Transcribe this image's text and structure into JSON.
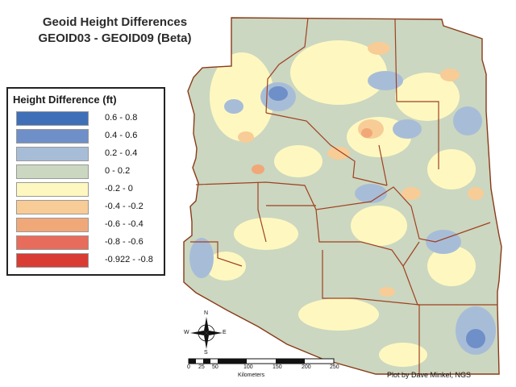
{
  "title": {
    "line1": "Geoid Height Differences",
    "line2": "GEOID03 - GEOID09 (Beta)"
  },
  "legend": {
    "title": "Height Difference (ft)",
    "items": [
      {
        "label": "0.6 - 0.8",
        "color": "#3f6fb7"
      },
      {
        "label": "0.4 - 0.6",
        "color": "#6f8fc8"
      },
      {
        "label": "0.2 - 0.4",
        "color": "#a7bdd7"
      },
      {
        "label": "0 - 0.2",
        "color": "#cbd7c0"
      },
      {
        "label": "-0.2 - 0",
        "color": "#fef8c0"
      },
      {
        "label": "-0.4 - -0.2",
        "color": "#f8cc96"
      },
      {
        "label": "-0.6 - -0.4",
        "color": "#f1a878"
      },
      {
        "label": "-0.8 - -0.6",
        "color": "#e86c5b"
      },
      {
        "label": "-0.922 - -0.8",
        "color": "#d83c33"
      }
    ]
  },
  "compass": {
    "n": "N",
    "s": "S",
    "e": "E",
    "w": "W"
  },
  "scale": {
    "ticks": [
      "0",
      "25",
      "50",
      "100",
      "150",
      "200",
      "250"
    ],
    "unit": "Kilometers"
  },
  "credit": "Plot by Dave Minkel, NGS",
  "colors": {
    "boundary": "#a04020",
    "border": "#8a3a18"
  }
}
